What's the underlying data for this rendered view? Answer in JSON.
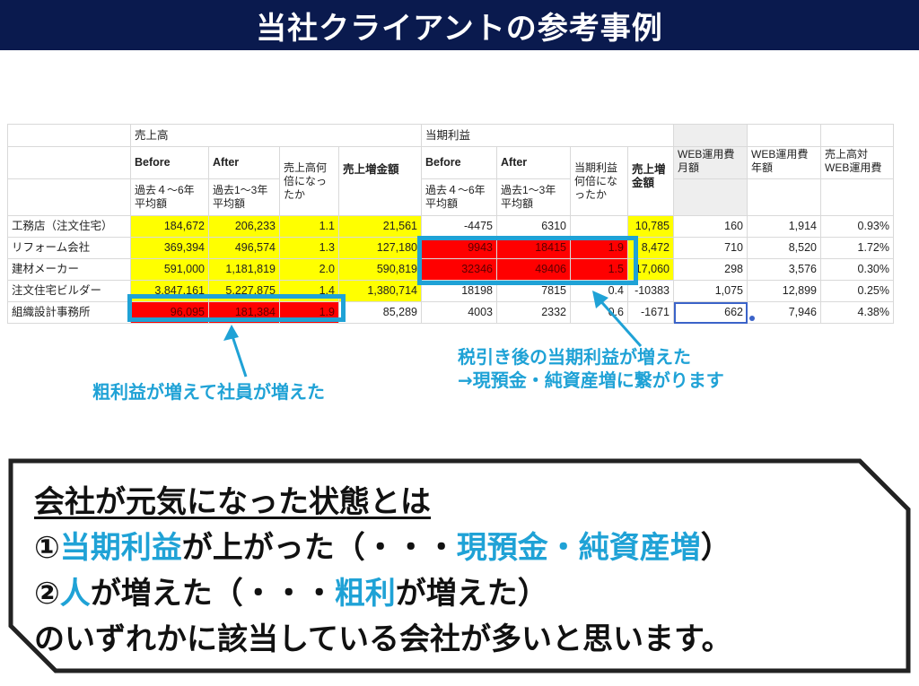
{
  "title": "当社クライアントの参考事例",
  "table": {
    "group_sales": "売上高",
    "group_profit": "当期利益",
    "before": "Before",
    "after": "After",
    "ratio_label": "売上高何倍になったか",
    "increase_label": "売上増金額",
    "before_sub": "過去４〜6年平均額",
    "after_sub": "過去1〜3年平均額",
    "profit_ratio_label": "当期利益何倍になったか",
    "web_monthly": "WEB運用費月額",
    "web_yearly": "WEB運用費年額",
    "web_ratio": "売上高対WEB運用費",
    "rows": [
      {
        "name": "工務店（注文住宅）",
        "s_before": "184,672",
        "s_after": "206,233",
        "s_ratio": "1.1",
        "s_inc": "21,561",
        "p_before": "-4475",
        "p_after": "6310",
        "p_ratio": "",
        "p_inc": "10,785",
        "web_m": "160",
        "web_y": "1,914",
        "web_r": "0.93%"
      },
      {
        "name": "リフォーム会社",
        "s_before": "369,394",
        "s_after": "496,574",
        "s_ratio": "1.3",
        "s_inc": "127,180",
        "p_before": "9943",
        "p_after": "18415",
        "p_ratio": "1.9",
        "p_inc": "8,472",
        "web_m": "710",
        "web_y": "8,520",
        "web_r": "1.72%"
      },
      {
        "name": "建材メーカー",
        "s_before": "591,000",
        "s_after": "1,181,819",
        "s_ratio": "2.0",
        "s_inc": "590,819",
        "p_before": "32346",
        "p_after": "49406",
        "p_ratio": "1.5",
        "p_inc": "17,060",
        "web_m": "298",
        "web_y": "3,576",
        "web_r": "0.30%"
      },
      {
        "name": "注文住宅ビルダー",
        "s_before": "3,847,161",
        "s_after": "5,227,875",
        "s_ratio": "1.4",
        "s_inc": "1,380,714",
        "p_before": "18198",
        "p_after": "7815",
        "p_ratio": "0.4",
        "p_inc": "-10383",
        "web_m": "1,075",
        "web_y": "12,899",
        "web_r": "0.25%"
      },
      {
        "name": "組織設計事務所",
        "s_before": "96,095",
        "s_after": "181,384",
        "s_ratio": "1.9",
        "s_inc": "85,289",
        "p_before": "4003",
        "p_after": "2332",
        "p_ratio": "0.6",
        "p_inc": "-1671",
        "web_m": "662",
        "web_y": "7,946",
        "web_r": "4.38%"
      }
    ]
  },
  "notes": {
    "left": "粗利益が増えて社員が増えた",
    "right_1": "税引き後の当期利益が増えた",
    "right_2": "→現預金・純資産増に繋がります"
  },
  "callout": {
    "heading": "会社が元気になった状態とは",
    "l1_prefix": "①",
    "l1_key": "当期利益",
    "l1_mid": "が上がった（・・・",
    "l1_key2": "現預金・純資産増",
    "l1_end": "）",
    "l2_prefix": "②",
    "l2_key": "人",
    "l2_mid": "が増えた（・・・",
    "l2_key2": "粗利",
    "l2_end": "が増えた）",
    "l3": "のいずれかに該当している会社が多いと思います。"
  },
  "colors": {
    "title_bg": "#0a1a4e",
    "accent": "#1fa2d6",
    "yellow": "#ffff00",
    "red": "#ff0000"
  }
}
